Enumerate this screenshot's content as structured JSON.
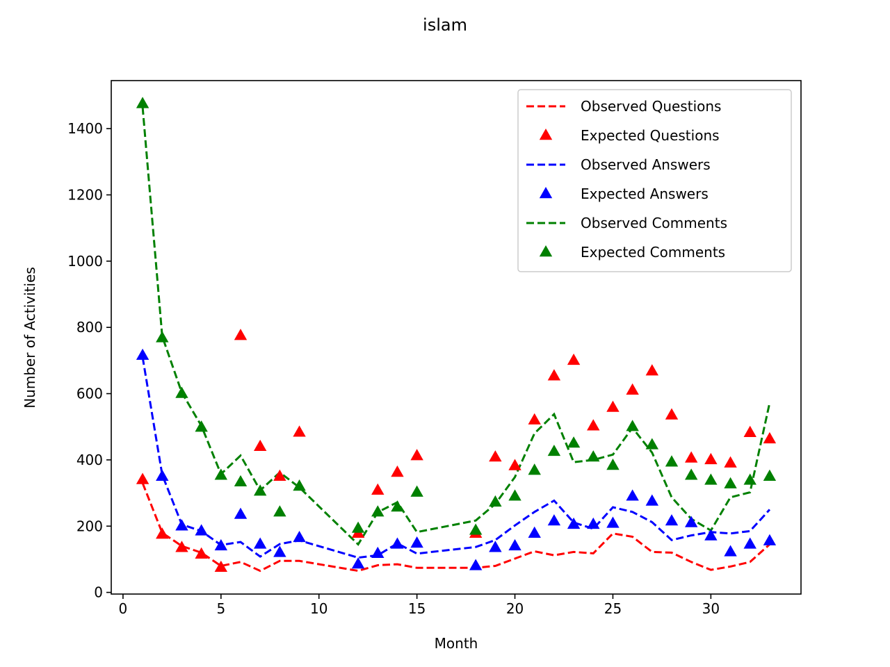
{
  "chart_data": {
    "type": "line",
    "title": "islam",
    "xlabel": "Month",
    "ylabel": "Number of Activities",
    "xlim": [
      -0.6,
      34.6
    ],
    "ylim": [
      -5,
      1545
    ],
    "xticks": [
      0,
      5,
      10,
      15,
      20,
      25,
      30
    ],
    "yticks": [
      0,
      200,
      400,
      600,
      800,
      1000,
      1200,
      1400
    ],
    "grid": false,
    "legend_position": "top-right",
    "x": [
      1,
      2,
      3,
      4,
      5,
      6,
      7,
      8,
      9,
      12,
      13,
      14,
      15,
      18,
      19,
      20,
      21,
      22,
      23,
      24,
      25,
      26,
      27,
      28,
      29,
      30,
      31,
      32,
      33
    ],
    "series": [
      {
        "name": "Observed Questions",
        "kind": "line",
        "style": "dashed",
        "color": "#ff0000",
        "values": [
          330,
          180,
          140,
          120,
          80,
          92,
          65,
          95,
          95,
          65,
          82,
          85,
          74,
          74,
          80,
          102,
          124,
          112,
          122,
          118,
          178,
          168,
          122,
          120,
          92,
          68,
          78,
          92,
          145
        ]
      },
      {
        "name": "Expected Questions",
        "kind": "marker",
        "marker": "triangle",
        "color": "#ff0000",
        "values": [
          340,
          175,
          135,
          115,
          75,
          775,
          440,
          350,
          483,
          178,
          308,
          362,
          412,
          178,
          408,
          382,
          520,
          653,
          700,
          502,
          558,
          610,
          668,
          535,
          405,
          400,
          390,
          482,
          463
        ]
      },
      {
        "name": "Observed Answers",
        "kind": "line",
        "style": "dashed",
        "color": "#0000ff",
        "values": [
          710,
          355,
          205,
          185,
          143,
          152,
          108,
          146,
          157,
          105,
          112,
          148,
          117,
          137,
          158,
          202,
          243,
          277,
          211,
          192,
          257,
          243,
          212,
          158,
          172,
          182,
          178,
          185,
          250
        ]
      },
      {
        "name": "Expected Answers",
        "kind": "marker",
        "marker": "triangle",
        "color": "#0000ff",
        "values": [
          715,
          350,
          200,
          185,
          140,
          235,
          145,
          120,
          165,
          85,
          117,
          145,
          148,
          80,
          135,
          140,
          178,
          215,
          205,
          205,
          208,
          290,
          275,
          215,
          210,
          170,
          122,
          145,
          155
        ]
      },
      {
        "name": "Observed Comments",
        "kind": "line",
        "style": "dashed",
        "color": "#008000",
        "values": [
          1465,
          773,
          603,
          503,
          357,
          413,
          308,
          362,
          317,
          145,
          242,
          272,
          182,
          217,
          267,
          348,
          480,
          538,
          393,
          400,
          416,
          497,
          422,
          287,
          222,
          187,
          287,
          302,
          572
        ]
      },
      {
        "name": "Expected Comments",
        "kind": "marker",
        "marker": "triangle",
        "color": "#008000",
        "values": [
          1475,
          768,
          600,
          498,
          353,
          333,
          305,
          242,
          320,
          193,
          242,
          257,
          302,
          187,
          272,
          290,
          368,
          425,
          450,
          408,
          383,
          500,
          445,
          393,
          353,
          338,
          327,
          338,
          350
        ]
      }
    ]
  }
}
